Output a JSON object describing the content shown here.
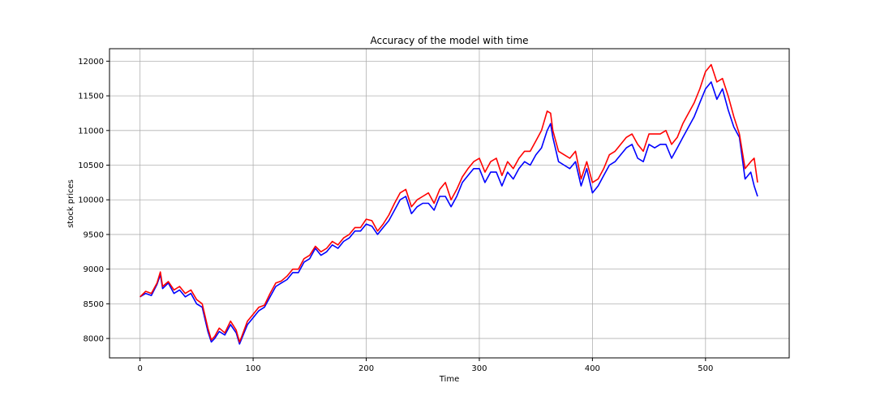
{
  "chart_data": {
    "type": "line",
    "title": "Accuracy of the model with time",
    "xlabel": "Time",
    "ylabel": "stock prices",
    "xlim": [
      -27,
      574
    ],
    "ylim": [
      7720,
      12180
    ],
    "xticks": [
      0,
      100,
      200,
      300,
      400,
      500
    ],
    "yticks": [
      8000,
      8500,
      9000,
      9500,
      10000,
      10500,
      11000,
      11500,
      12000
    ],
    "grid": true,
    "legend": "none",
    "series": [
      {
        "color": "#0000ff",
        "x": [
          0,
          5,
          10,
          15,
          18,
          20,
          25,
          30,
          35,
          40,
          45,
          50,
          55,
          60,
          63,
          66,
          70,
          75,
          80,
          85,
          88,
          90,
          95,
          100,
          105,
          110,
          115,
          120,
          125,
          130,
          135,
          140,
          145,
          150,
          155,
          160,
          165,
          170,
          175,
          180,
          185,
          190,
          195,
          200,
          205,
          210,
          215,
          220,
          225,
          230,
          235,
          240,
          245,
          250,
          255,
          260,
          265,
          270,
          275,
          280,
          285,
          290,
          295,
          300,
          305,
          310,
          315,
          320,
          325,
          330,
          335,
          340,
          345,
          350,
          355,
          360,
          363,
          365,
          370,
          375,
          380,
          385,
          390,
          395,
          400,
          405,
          410,
          415,
          420,
          425,
          430,
          435,
          440,
          445,
          450,
          455,
          460,
          465,
          470,
          475,
          480,
          485,
          490,
          495,
          500,
          505,
          510,
          515,
          520,
          525,
          530,
          535,
          540,
          543,
          546
        ],
        "y": [
          8600,
          8650,
          8620,
          8780,
          8920,
          8720,
          8800,
          8650,
          8700,
          8600,
          8650,
          8500,
          8450,
          8100,
          7950,
          8000,
          8100,
          8050,
          8200,
          8080,
          7920,
          8000,
          8200,
          8300,
          8400,
          8450,
          8600,
          8750,
          8800,
          8850,
          8950,
          8950,
          9100,
          9150,
          9300,
          9200,
          9250,
          9350,
          9300,
          9400,
          9450,
          9550,
          9550,
          9650,
          9620,
          9500,
          9600,
          9700,
          9850,
          10000,
          10050,
          9800,
          9900,
          9950,
          9950,
          9850,
          10050,
          10050,
          9900,
          10050,
          10250,
          10350,
          10450,
          10450,
          10250,
          10400,
          10400,
          10200,
          10400,
          10300,
          10450,
          10550,
          10500,
          10650,
          10750,
          11000,
          11100,
          10900,
          10550,
          10500,
          10450,
          10550,
          10200,
          10450,
          10100,
          10200,
          10350,
          10500,
          10550,
          10650,
          10750,
          10800,
          10600,
          10550,
          10800,
          10750,
          10800,
          10800,
          10600,
          10750,
          10900,
          11050,
          11200,
          11400,
          11600,
          11700,
          11450,
          11600,
          11300,
          11050,
          10900,
          10300,
          10400,
          10200,
          10050
        ]
      },
      {
        "color": "#ff0000",
        "x": [
          0,
          5,
          10,
          15,
          18,
          20,
          25,
          30,
          35,
          40,
          45,
          50,
          55,
          60,
          63,
          66,
          70,
          75,
          80,
          85,
          88,
          90,
          95,
          100,
          105,
          110,
          115,
          120,
          125,
          130,
          135,
          140,
          145,
          150,
          155,
          160,
          165,
          170,
          175,
          180,
          185,
          190,
          195,
          200,
          205,
          210,
          215,
          220,
          225,
          230,
          235,
          240,
          245,
          250,
          255,
          260,
          265,
          270,
          275,
          280,
          285,
          290,
          295,
          300,
          305,
          310,
          315,
          320,
          325,
          330,
          335,
          340,
          345,
          350,
          355,
          360,
          363,
          365,
          370,
          375,
          380,
          385,
          390,
          395,
          400,
          405,
          410,
          415,
          420,
          425,
          430,
          435,
          440,
          445,
          450,
          455,
          460,
          465,
          470,
          475,
          480,
          485,
          490,
          495,
          500,
          505,
          510,
          515,
          520,
          525,
          530,
          535,
          540,
          543,
          546
        ],
        "y": [
          8600,
          8680,
          8650,
          8800,
          8960,
          8750,
          8820,
          8700,
          8750,
          8650,
          8700,
          8560,
          8500,
          8150,
          7980,
          8030,
          8150,
          8080,
          8250,
          8120,
          7950,
          8030,
          8250,
          8350,
          8450,
          8480,
          8650,
          8800,
          8830,
          8900,
          9000,
          9000,
          9150,
          9200,
          9330,
          9250,
          9300,
          9400,
          9350,
          9450,
          9500,
          9600,
          9600,
          9720,
          9700,
          9550,
          9650,
          9780,
          9950,
          10100,
          10150,
          9900,
          10000,
          10050,
          10100,
          9950,
          10150,
          10250,
          10000,
          10150,
          10330,
          10450,
          10550,
          10600,
          10400,
          10550,
          10600,
          10350,
          10550,
          10450,
          10600,
          10700,
          10700,
          10850,
          11000,
          11280,
          11250,
          11000,
          10700,
          10650,
          10600,
          10700,
          10300,
          10550,
          10250,
          10300,
          10450,
          10650,
          10700,
          10800,
          10900,
          10950,
          10800,
          10700,
          10950,
          10950,
          10950,
          11000,
          10800,
          10900,
          11100,
          11250,
          11400,
          11600,
          11850,
          11950,
          11700,
          11750,
          11500,
          11200,
          10950,
          10450,
          10550,
          10600,
          10250
        ]
      }
    ]
  }
}
